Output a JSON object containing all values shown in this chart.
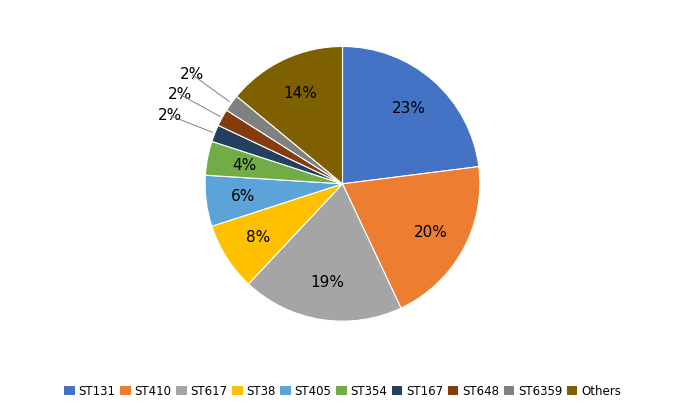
{
  "labels": [
    "ST131",
    "ST410",
    "ST617",
    "ST38",
    "ST405",
    "ST354",
    "ST167",
    "ST648",
    "ST6359",
    "Others"
  ],
  "percentages": [
    23,
    20,
    19,
    8,
    6,
    4,
    2,
    2,
    2,
    14
  ],
  "colors": [
    "#4472C4",
    "#ED7D31",
    "#A5A5A5",
    "#FFC000",
    "#5BA3D9",
    "#70AD47",
    "#243F60",
    "#843C0C",
    "#808080",
    "#7F6000"
  ],
  "startangle": 90,
  "pct_distance": 0.73,
  "legend_fontsize": 8.5,
  "pct_fontsize": 11
}
